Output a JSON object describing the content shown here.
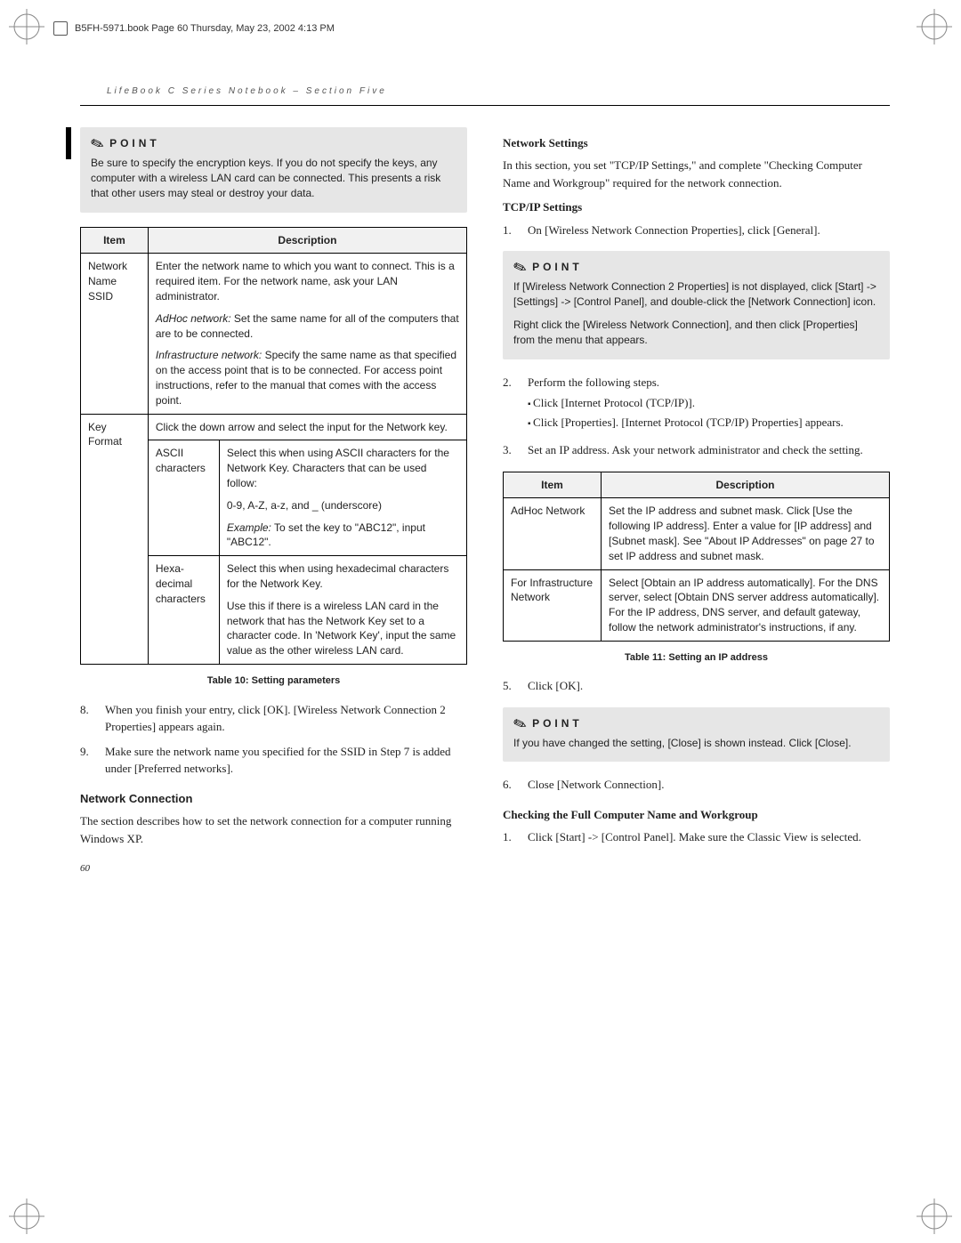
{
  "doc_header": "B5FH-5971.book  Page 60  Thursday, May 23, 2002  4:13 PM",
  "running_head": "LifeBook C Series Notebook – Section Five",
  "page_number": "60",
  "left": {
    "point1": "Be sure to specify the encryption keys. If you do not specify the keys, any computer with a wireless LAN card can be connected. This presents a risk that other users may steal or destroy your data.",
    "table10": {
      "caption": "Table 10: Setting parameters",
      "headers": [
        "Item",
        "Description"
      ],
      "rows": [
        {
          "item": "Network Name SSID",
          "desc_blocks": [
            "Enter the network name to which you want to connect. This is a required item. For the network name, ask your LAN administrator.",
            "<em>AdHoc network:</em> Set the same name for all of the computers that are to be connected.",
            "<em>Infrastructure network:</em> Specify the same name as that specified on the access point that is to be connected. For access point instructions, refer to the manual that comes with the access point."
          ]
        },
        {
          "item": "Key Format",
          "desc_span": "Click the down arrow and select the input for the Network key.",
          "subrows": [
            {
              "sub": "ASCII characters",
              "blocks": [
                "Select this when using ASCII characters for the Network Key. Characters that can be used follow:",
                "0-9, A-Z, a-z, and _ (underscore)",
                "<em>Example:</em> To set the key to \"ABC12\", input \"ABC12\"."
              ]
            },
            {
              "sub": "Hexa-decimal characters",
              "blocks": [
                "Select this when using hexadecimal characters for the Network Key.",
                "Use this if there is a wireless LAN card in the network that has the Network Key set to a character code. In 'Network Key', input the same value as the other wireless LAN card."
              ]
            }
          ]
        }
      ]
    },
    "steps_after_t10": [
      {
        "n": "8.",
        "t": "When you finish your entry, click [OK]. [Wireless Network Connection 2 Properties] appears again."
      },
      {
        "n": "9.",
        "t": "Make sure the network name you specified for the SSID in Step 7 is added under [Preferred networks]."
      }
    ],
    "nc_head": "Network Connection",
    "nc_body": "The section describes how to set the network connection for a computer running Windows XP."
  },
  "right": {
    "ns_head": "Network Settings",
    "ns_body": "In this section, you set \"TCP/IP Settings,\" and complete \"Checking Computer Name and Workgroup\" required for the network connection.",
    "tcp_head": "TCP/IP Settings",
    "step1": {
      "n": "1.",
      "t": "On [Wireless Network Connection Properties], click [General]."
    },
    "point2_a": "If [Wireless Network Connection 2 Properties] is not displayed, click [Start] -> [Settings] -> [Control Panel], and double-click the [Network Connection] icon.",
    "point2_b": "Right click the [Wireless Network Connection], and then click [Properties] from the menu that appears.",
    "step2": {
      "n": "2.",
      "lead": "Perform the following steps.",
      "bullets": [
        "Click [Internet Protocol (TCP/IP)].",
        "Click [Properties]. [Internet Protocol (TCP/IP) Properties] appears."
      ]
    },
    "step3": {
      "n": "3.",
      "t": "Set an IP address. Ask your network administrator and check the setting."
    },
    "table11": {
      "caption": "Table 11: Setting an IP address",
      "headers": [
        "Item",
        "Description"
      ],
      "rows": [
        {
          "item": "AdHoc Network",
          "desc": "Set the IP address and subnet mask. Click [Use the following IP address]. Enter a value for [IP address] and [Subnet mask]. See \"About IP Addresses\" on page 27 to set IP address and subnet mask."
        },
        {
          "item": "For Infrastructure Network",
          "desc": "Select [Obtain an IP address automatically]. For the DNS server, select [Obtain DNS server address automatically]. For the IP address, DNS server, and default gateway, follow the network administrator's instructions, if any."
        }
      ]
    },
    "step5": {
      "n": "5.",
      "t": "Click [OK]."
    },
    "point3": "If you have changed the setting, [Close] is shown instead. Click [Close].",
    "step6": {
      "n": "6.",
      "t": "Close [Network Connection]."
    },
    "check_head": "Checking the Full Computer Name and Workgroup",
    "check_step1": {
      "n": "1.",
      "t": "Click [Start] -> [Control Panel]. Make sure the Classic View is selected."
    }
  },
  "point_label": "POINT"
}
